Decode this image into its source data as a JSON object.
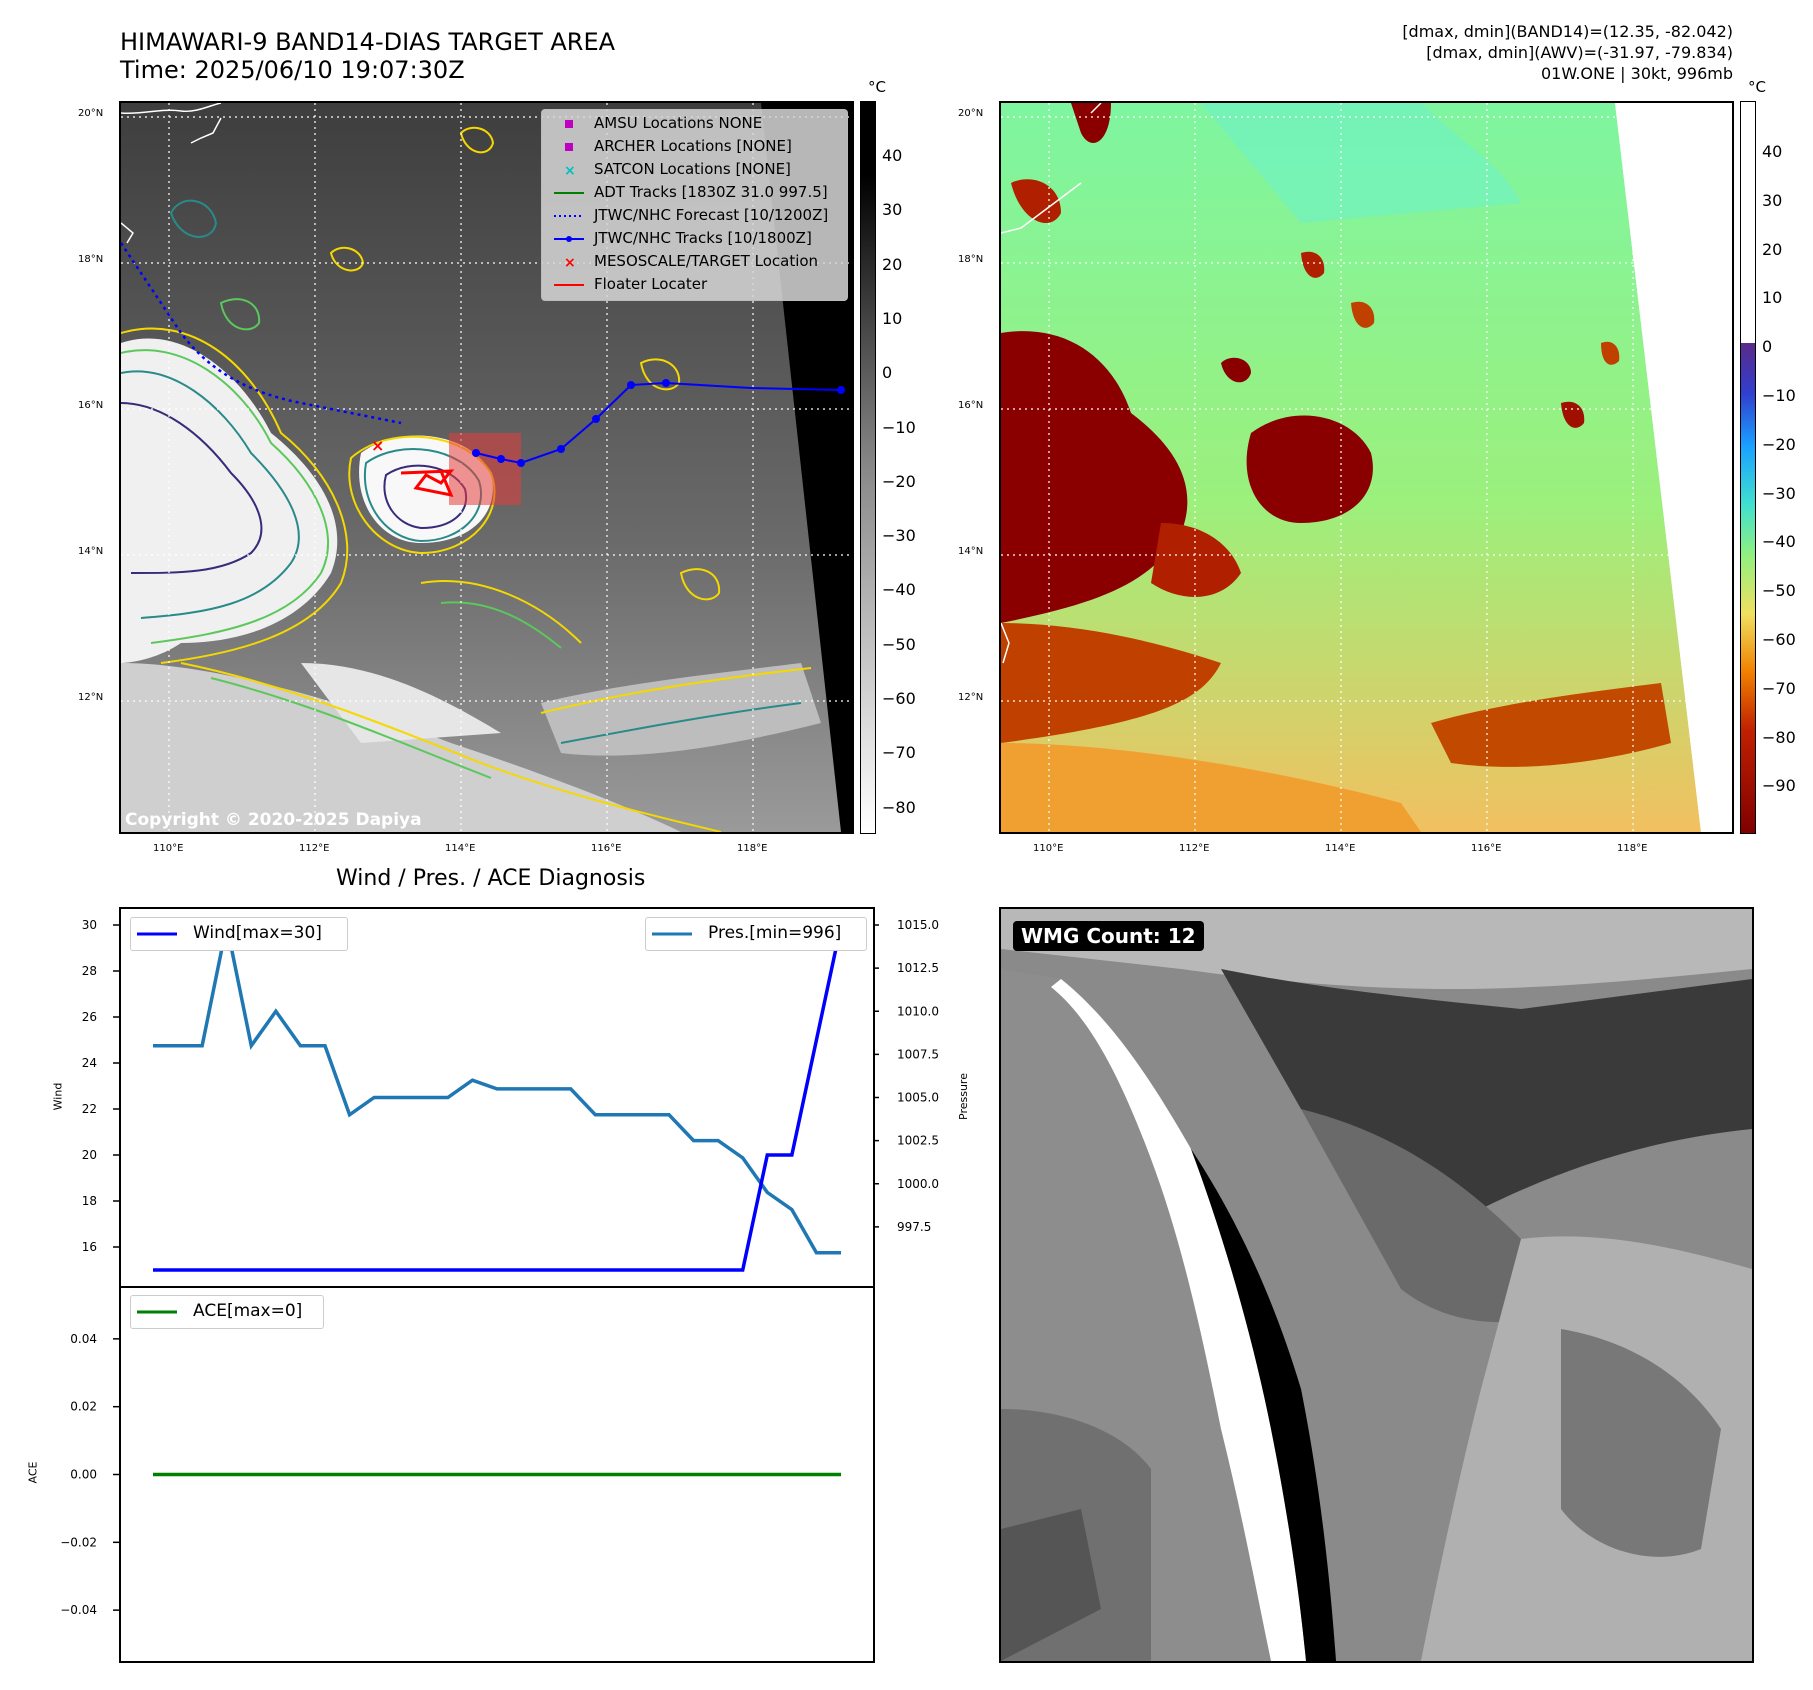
{
  "header": {
    "title_line1": "HIMAWARI-9 BAND14-DIAS TARGET AREA",
    "title_line2": "Time: 2025/06/10 19:07:30Z",
    "info_line1": "[dmax, dmin](BAND14)=(12.35, -82.042)",
    "info_line2": "[dmax, dmin](AWV)=(-31.97, -79.834)",
    "info_line3": "01W.ONE | 30kt, 996mb"
  },
  "map_axes": {
    "lon_ticks": [
      "110°E",
      "112°E",
      "114°E",
      "116°E",
      "118°E"
    ],
    "lat_ticks": [
      "20°N",
      "18°N",
      "16°N",
      "14°N",
      "12°N"
    ]
  },
  "left_map": {
    "copyright": "Copyright © 2020-2025 Dapiya",
    "legend": [
      {
        "label": "AMSU Locations NONE",
        "symbol": "square",
        "color": "#c000c0"
      },
      {
        "label": "ARCHER Locations [NONE]",
        "symbol": "square",
        "color": "#c000c0"
      },
      {
        "label": "SATCON Locations [NONE]",
        "symbol": "x",
        "color": "#00c0c0"
      },
      {
        "label": "ADT Tracks [1830Z 31.0 997.5]",
        "symbol": "line",
        "color": "#008000"
      },
      {
        "label": "JTWC/NHC Forecast [10/1200Z]",
        "symbol": "dotted",
        "color": "#0000ff"
      },
      {
        "label": "JTWC/NHC Tracks [10/1800Z]",
        "symbol": "line-dot",
        "color": "#0000ff"
      },
      {
        "label": "MESOSCALE/TARGET Location",
        "symbol": "x",
        "color": "#ff0000"
      },
      {
        "label": "Floater Locater",
        "symbol": "line",
        "color": "#ff0000"
      }
    ],
    "colorbar_unit": "°C",
    "colorbar_ticks": [
      "40",
      "30",
      "20",
      "10",
      "0",
      "−10",
      "−20",
      "−30",
      "−40",
      "−50",
      "−60",
      "−70",
      "−80"
    ]
  },
  "right_map": {
    "colorbar_unit": "°C",
    "colorbar_ticks": [
      "40",
      "30",
      "20",
      "10",
      "0",
      "−10",
      "−20",
      "−30",
      "−40",
      "−50",
      "−60",
      "−70",
      "−80",
      "−90"
    ]
  },
  "wmg": {
    "label": "WMG Count: 12"
  },
  "colors": {
    "wind": "#0000ff",
    "pressure": "#1f77b4",
    "ace": "#008000",
    "track": "#0000ff",
    "target": "#ff0000"
  },
  "chart_data": [
    {
      "type": "line",
      "title": "Wind / Pres. / ACE Diagnosis",
      "ylabel": "Wind",
      "ylim": [
        15,
        30
      ],
      "yticks": [
        "16",
        "18",
        "20",
        "22",
        "24",
        "26",
        "28",
        "30"
      ],
      "series": [
        {
          "name": "Wind[max=30]",
          "axis": "left",
          "values": [
            15,
            15,
            15,
            15,
            15,
            15,
            15,
            15,
            15,
            15,
            15,
            15,
            15,
            15,
            15,
            15,
            15,
            15,
            15,
            15,
            15,
            15,
            15,
            15,
            15,
            20,
            20,
            25,
            30
          ]
        }
      ]
    },
    {
      "type": "line",
      "ylabel": "Pressure",
      "ylim": [
        995.0,
        1015.0
      ],
      "yticks": [
        "997.5",
        "1000.0",
        "1002.5",
        "1005.0",
        "1007.5",
        "1010.0",
        "1012.5",
        "1015.0"
      ],
      "series": [
        {
          "name": "Pres.[min=996]",
          "axis": "right",
          "values": [
            1008,
            1008,
            1008,
            1015,
            1008,
            1010,
            1008,
            1008,
            1004,
            1005,
            1005,
            1005,
            1005,
            1006,
            1005.5,
            1005.5,
            1005.5,
            1005.5,
            1004,
            1004,
            1004,
            1004,
            1002.5,
            1002.5,
            1001.5,
            999.5,
            998.5,
            996,
            996
          ]
        }
      ]
    },
    {
      "type": "line",
      "ylabel": "ACE",
      "ylim": [
        -0.055,
        0.055
      ],
      "yticks": [
        "0.04",
        "0.02",
        "0.00",
        "−0.02",
        "−0.04"
      ],
      "series": [
        {
          "name": "ACE[max=0]",
          "values": [
            0,
            0,
            0,
            0,
            0,
            0,
            0,
            0,
            0,
            0,
            0,
            0,
            0,
            0,
            0,
            0,
            0,
            0,
            0,
            0,
            0,
            0,
            0,
            0,
            0,
            0,
            0,
            0,
            0
          ]
        }
      ]
    }
  ]
}
